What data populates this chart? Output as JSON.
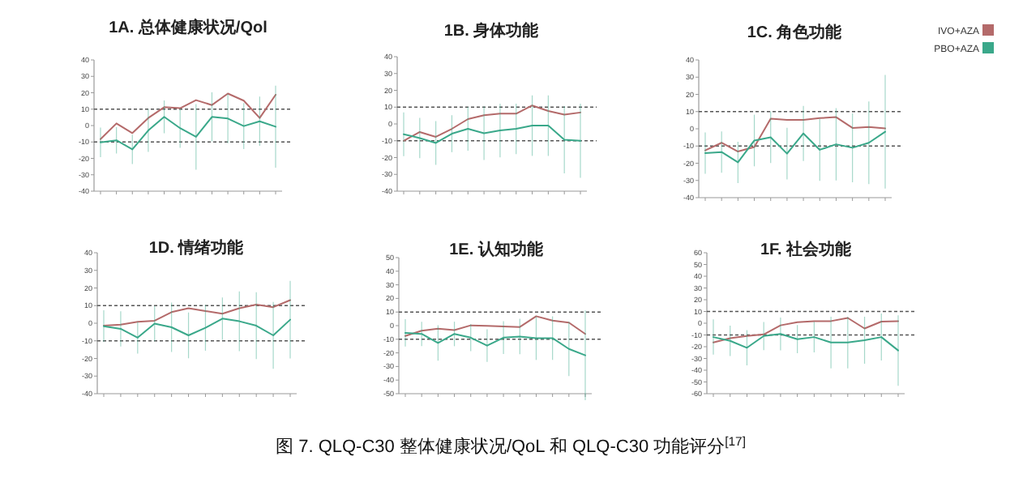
{
  "chart_data": [
    {
      "type": "line",
      "title": "1A. 总体健康状况/Qol",
      "categories": [
        null,
        null,
        null,
        null,
        null,
        null,
        null,
        null,
        null,
        null,
        null,
        null
      ],
      "ylim": [
        -40,
        40
      ],
      "yticks": [
        -40,
        -30,
        -20,
        -10,
        0,
        10,
        20,
        30,
        40
      ],
      "legend": false,
      "marker": "none",
      "line_style": "solid",
      "grid": false,
      "ref_lines": [
        {
          "axis": "y",
          "value": 10,
          "line_style": "dashed",
          "color": "#555555"
        },
        {
          "axis": "y",
          "value": -10,
          "line_style": "dashed",
          "color": "#555555"
        }
      ],
      "series": [
        {
          "color": "#b46a6a",
          "values": [
            -8.3,
            1.3,
            -4.6,
            4.6,
            11.2,
            10.6,
            15.5,
            12.5,
            19.5,
            15.2,
            4.6,
            18.8
          ]
        },
        {
          "color": "#3aa88a",
          "values": [
            -10.2,
            -9,
            -14.5,
            -3,
            5.3,
            -1.6,
            -6.9,
            5.3,
            4.3,
            -0.3,
            2.6,
            -0.7
          ],
          "errors": [
            9,
            8,
            9,
            13,
            10,
            12,
            20,
            15,
            15,
            14,
            15,
            25
          ]
        }
      ]
    },
    {
      "type": "line",
      "title": "1B. 身体功能",
      "categories": [
        null,
        null,
        null,
        null,
        null,
        null,
        null,
        null,
        null,
        null,
        null,
        null
      ],
      "ylim": [
        -40,
        40
      ],
      "yticks": [
        -40,
        -30,
        -20,
        -10,
        0,
        10,
        20,
        30,
        40
      ],
      "legend": false,
      "marker": "none",
      "line_style": "solid",
      "grid": false,
      "ref_lines": [
        {
          "axis": "y",
          "value": 10,
          "line_style": "dashed",
          "color": "#555555"
        },
        {
          "axis": "y",
          "value": -10,
          "line_style": "dashed",
          "color": "#555555"
        }
      ],
      "series": [
        {
          "color": "#b46a6a",
          "values": [
            -10,
            -4.8,
            -7.7,
            -2.9,
            2.9,
            5.2,
            6.1,
            6.1,
            11,
            7.7,
            5.5,
            6.8
          ]
        },
        {
          "color": "#3aa88a",
          "values": [
            -6.1,
            -8.4,
            -11.3,
            -5.8,
            -2.9,
            -5.5,
            -3.9,
            -2.9,
            -1,
            -1,
            -9.4,
            -10
          ],
          "errors": [
            13,
            12,
            13,
            11,
            13,
            16,
            16,
            15,
            18,
            18,
            20,
            22
          ]
        }
      ]
    },
    {
      "type": "line",
      "title": "1C. 角色功能",
      "categories": [
        null,
        null,
        null,
        null,
        null,
        null,
        null,
        null,
        null,
        null,
        null,
        null
      ],
      "ylim": [
        -40,
        40
      ],
      "yticks": [
        -40,
        -30,
        -20,
        -10,
        0,
        10,
        20,
        30,
        40
      ],
      "legend": "right",
      "marker": "none",
      "line_style": "solid",
      "grid": false,
      "ref_lines": [
        {
          "axis": "y",
          "value": 10,
          "line_style": "dashed",
          "color": "#555555"
        },
        {
          "axis": "y",
          "value": -10,
          "line_style": "dashed",
          "color": "#555555"
        }
      ],
      "series": [
        {
          "name": "IVO+AZA",
          "color": "#b46a6a",
          "values": [
            -12.5,
            -8.1,
            -13.2,
            -10.6,
            5.9,
            5.2,
            5.2,
            6.2,
            6.8,
            0.5,
            1.1,
            0.2
          ]
        },
        {
          "name": "PBO+AZA",
          "color": "#3aa88a",
          "values": [
            -14.1,
            -13.5,
            -19.5,
            -6.8,
            -4.9,
            -14.4,
            -2.7,
            -12.2,
            -9,
            -11,
            -8.1,
            -1.7
          ],
          "errors": [
            12,
            12,
            12,
            15,
            15,
            15,
            16,
            18,
            21,
            20,
            24,
            33
          ]
        }
      ]
    },
    {
      "type": "line",
      "title": "1D. 情绪功能",
      "categories": [
        null,
        null,
        null,
        null,
        null,
        null,
        null,
        null,
        null,
        null,
        null,
        null
      ],
      "ylim": [
        -40,
        40
      ],
      "yticks": [
        -40,
        -30,
        -20,
        -10,
        0,
        10,
        20,
        30,
        40
      ],
      "legend": false,
      "marker": "none",
      "line_style": "solid",
      "grid": false,
      "ref_lines": [
        {
          "axis": "y",
          "value": 10,
          "line_style": "dashed",
          "color": "#555555"
        },
        {
          "axis": "y",
          "value": -10,
          "line_style": "dashed",
          "color": "#555555"
        }
      ],
      "series": [
        {
          "color": "#b46a6a",
          "values": [
            -1.4,
            -0.8,
            0.8,
            1.4,
            6.3,
            8.5,
            6.9,
            5.4,
            8.5,
            10.6,
            9.1,
            13.1
          ]
        },
        {
          "color": "#3aa88a",
          "values": [
            -1.7,
            -3.2,
            -8.2,
            -0.2,
            -2.3,
            -6.9,
            -2.6,
            2.6,
            1.1,
            -1.4,
            -6.9,
            2
          ],
          "errors": [
            9,
            10,
            9,
            10,
            14,
            13,
            13,
            12,
            17,
            19,
            19,
            22
          ]
        }
      ]
    },
    {
      "type": "line",
      "title": "1E. 认知功能",
      "categories": [
        null,
        null,
        null,
        null,
        null,
        null,
        null,
        null,
        null,
        null,
        null,
        null
      ],
      "ylim": [
        -50,
        50
      ],
      "yticks": [
        -50,
        -40,
        -30,
        -20,
        -10,
        0,
        10,
        20,
        30,
        40,
        50
      ],
      "legend": false,
      "marker": "none",
      "line_style": "solid",
      "grid": false,
      "ref_lines": [
        {
          "axis": "y",
          "value": 10,
          "line_style": "dashed",
          "color": "#555555"
        },
        {
          "axis": "y",
          "value": -10,
          "line_style": "dashed",
          "color": "#555555"
        }
      ],
      "series": [
        {
          "color": "#b46a6a",
          "values": [
            -7.6,
            -3.7,
            -2.2,
            -3.3,
            0.2,
            -0.2,
            -0.6,
            -1,
            6.9,
            3.7,
            2.2,
            -6.1
          ]
        },
        {
          "color": "#3aa88a",
          "values": [
            -5.3,
            -6.1,
            -12.7,
            -6.1,
            -8.8,
            -14.7,
            -8.8,
            -8,
            -9.2,
            -9.2,
            -17.1,
            -21.8
          ],
          "errors": [
            10,
            9,
            13,
            9,
            10,
            12,
            12,
            13,
            16,
            16,
            20,
            33
          ]
        }
      ]
    },
    {
      "type": "line",
      "title": "1F. 社会功能",
      "categories": [
        null,
        null,
        null,
        null,
        null,
        null,
        null,
        null,
        null,
        null,
        null,
        null
      ],
      "ylim": [
        -60,
        60
      ],
      "yticks": [
        -60,
        -50,
        -40,
        -30,
        -20,
        -10,
        0,
        10,
        20,
        30,
        40,
        50,
        60
      ],
      "legend": false,
      "marker": "none",
      "line_style": "solid",
      "grid": false,
      "ref_lines": [
        {
          "axis": "y",
          "value": 10,
          "line_style": "dashed",
          "color": "#555555"
        },
        {
          "axis": "y",
          "value": -10,
          "line_style": "dashed",
          "color": "#555555"
        }
      ],
      "annotations": [
        "图 7. QLQ-C30 整体健康状况/QoL 和 QLQ-C30 功能评分$^{[17]}$"
      ],
      "series": [
        {
          "color": "#b46a6a",
          "values": [
            -16.4,
            -12.7,
            -10.9,
            -9.5,
            -1.8,
            0.9,
            1.8,
            1.8,
            4.5,
            -4.5,
            1.4,
            1.8
          ]
        },
        {
          "color": "#3aa88a",
          "values": [
            -11.8,
            -15,
            -20.9,
            -10.9,
            -9.1,
            -13.6,
            -11.8,
            -16.4,
            -16.4,
            -14.5,
            -11.8,
            -23.2
          ],
          "errors": [
            15,
            13,
            15,
            12,
            14,
            12,
            13,
            22,
            22,
            20,
            20,
            30
          ]
        }
      ]
    }
  ]
}
